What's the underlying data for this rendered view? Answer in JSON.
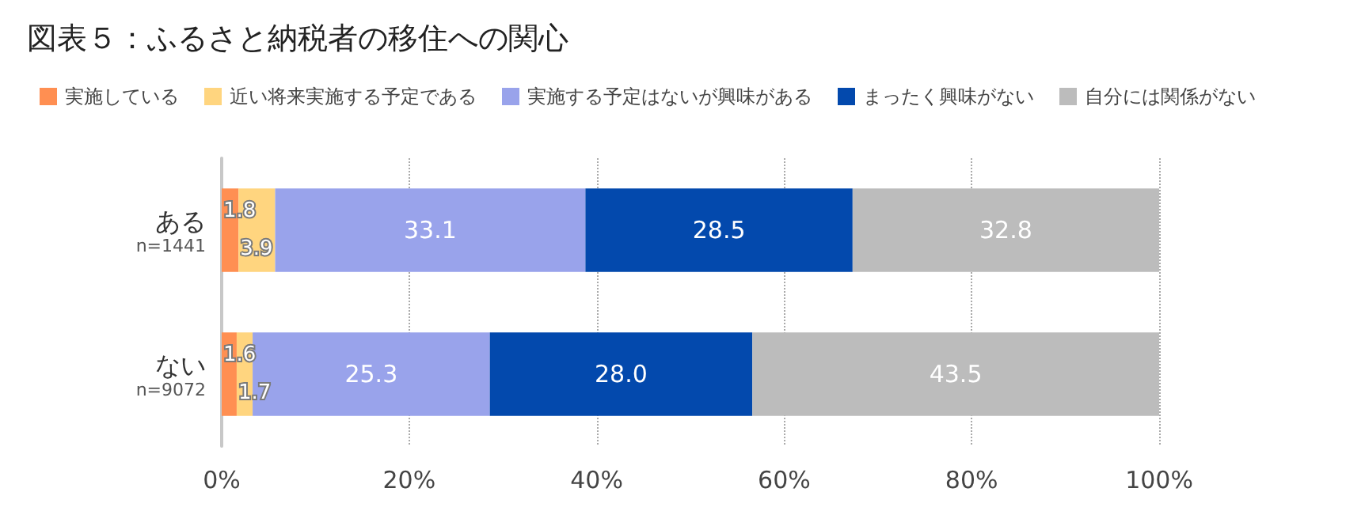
{
  "chart_data": {
    "type": "bar",
    "orientation": "horizontal",
    "stacked": true,
    "title": "図表５：ふるさと納税者の移住への関心",
    "categories": [
      "ある\nn=1441",
      "ない\nn=9072"
    ],
    "series": [
      {
        "name": "実施している",
        "color": "#ff8f52",
        "values": [
          1.8,
          1.6
        ],
        "value_labels": [
          "1.8",
          "1.6"
        ]
      },
      {
        "name": "近い将来実施する予定である",
        "color": "#ffd57f",
        "values": [
          3.9,
          1.7
        ],
        "value_labels": [
          "3.9",
          "1.7"
        ]
      },
      {
        "name": "実施する予定はないが興味がある",
        "color": "#99a3eb",
        "values": [
          33.1,
          25.3
        ],
        "value_labels": [
          "33.1",
          "25.3"
        ]
      },
      {
        "name": "まったく興味がない",
        "color": "#0349ad",
        "values": [
          28.5,
          28.0
        ],
        "value_labels": [
          "28.5",
          "28.0"
        ]
      },
      {
        "name": "自分には関係がない",
        "color": "#bcbcbc",
        "values": [
          32.8,
          43.5
        ],
        "value_labels": [
          "32.8",
          "43.5"
        ]
      }
    ],
    "xlim": [
      0,
      100
    ],
    "xticks": [
      {
        "value": 0,
        "label": "0%"
      },
      {
        "value": 20,
        "label": "20%"
      },
      {
        "value": 40,
        "label": "40%"
      },
      {
        "value": 60,
        "label": "60%"
      },
      {
        "value": 80,
        "label": "80%"
      },
      {
        "value": 100,
        "label": "100%"
      }
    ],
    "grid": "x",
    "legend": "top left"
  }
}
